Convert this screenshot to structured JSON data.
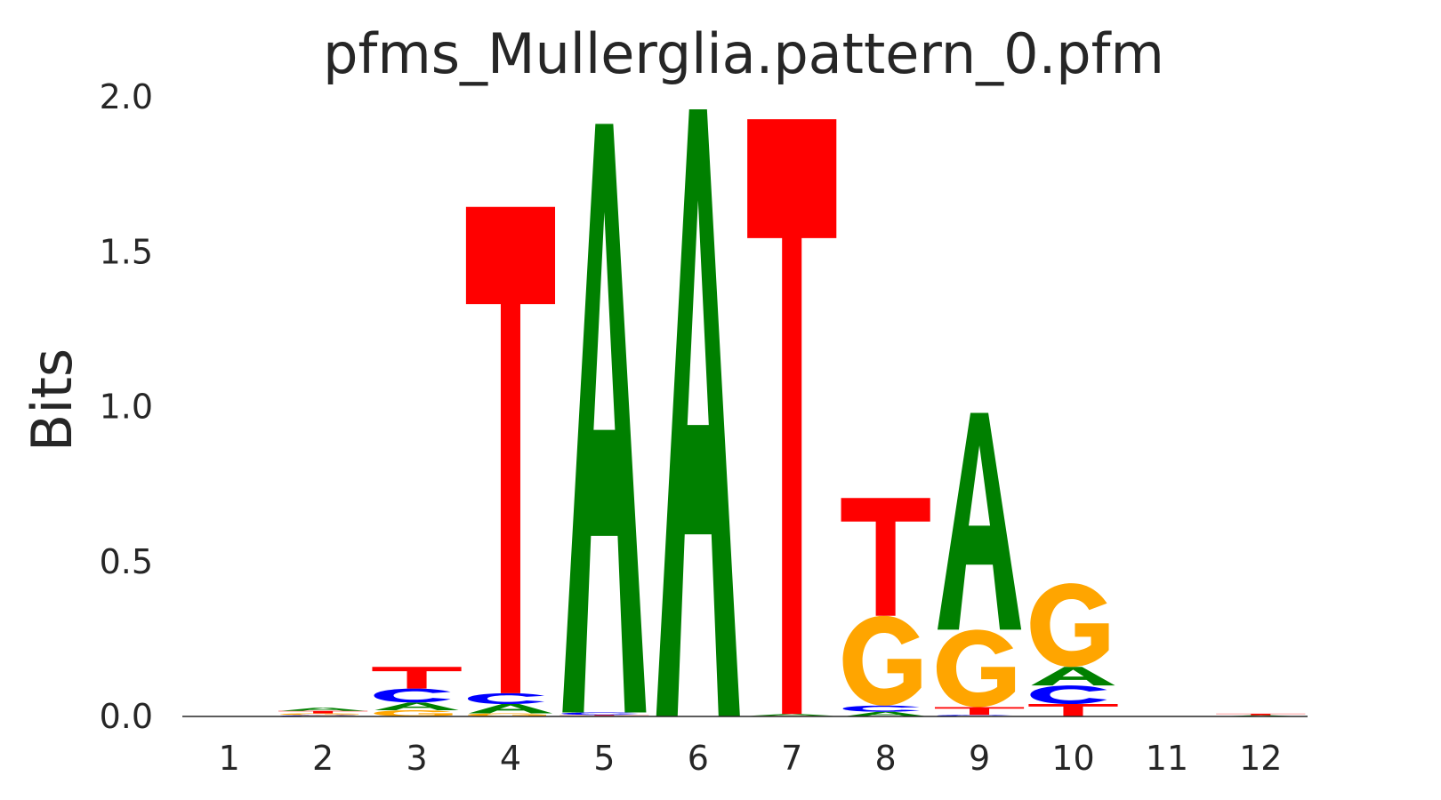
{
  "chart_data": {
    "type": "sequence-logo",
    "title": "pfms_Mullerglia.pattern_0.pfm",
    "xlabel": "",
    "ylabel": "Bits",
    "ylim": [
      0,
      2.0
    ],
    "yticks": [
      "0.0",
      "0.5",
      "1.0",
      "1.5",
      "2.0"
    ],
    "positions": [
      "1",
      "2",
      "3",
      "4",
      "5",
      "6",
      "7",
      "8",
      "9",
      "10",
      "11",
      "12"
    ],
    "colors": {
      "A": "#008000",
      "C": "#0000ff",
      "G": "#ffa500",
      "T": "#ff0000"
    },
    "grid": false,
    "legend": "none",
    "stacks": [
      [],
      [
        {
          "letter": "C",
          "height": 0.004
        },
        {
          "letter": "G",
          "height": 0.006
        },
        {
          "letter": "T",
          "height": 0.008
        },
        {
          "letter": "A",
          "height": 0.01
        }
      ],
      [
        {
          "letter": "G",
          "height": 0.02
        },
        {
          "letter": "A",
          "height": 0.025
        },
        {
          "letter": "C",
          "height": 0.045
        },
        {
          "letter": "T",
          "height": 0.07
        }
      ],
      [
        {
          "letter": "G",
          "height": 0.01
        },
        {
          "letter": "A",
          "height": 0.03
        },
        {
          "letter": "C",
          "height": 0.035
        },
        {
          "letter": "T",
          "height": 1.57
        }
      ],
      [
        {
          "letter": "G",
          "height": 0.002
        },
        {
          "letter": "T",
          "height": 0.003
        },
        {
          "letter": "C",
          "height": 0.008
        },
        {
          "letter": "A",
          "height": 1.9
        }
      ],
      [
        {
          "letter": "A",
          "height": 1.96
        }
      ],
      [
        {
          "letter": "G",
          "height": 0.002
        },
        {
          "letter": "A",
          "height": 0.006
        },
        {
          "letter": "T",
          "height": 1.92
        }
      ],
      [
        {
          "letter": "A",
          "height": 0.015
        },
        {
          "letter": "C",
          "height": 0.02
        },
        {
          "letter": "G",
          "height": 0.29
        },
        {
          "letter": "T",
          "height": 0.38
        }
      ],
      [
        {
          "letter": "C",
          "height": 0.005
        },
        {
          "letter": "T",
          "height": 0.025
        },
        {
          "letter": "G",
          "height": 0.25
        },
        {
          "letter": "A",
          "height": 0.7
        }
      ],
      [
        {
          "letter": "T",
          "height": 0.04
        },
        {
          "letter": "C",
          "height": 0.06
        },
        {
          "letter": "A",
          "height": 0.06
        },
        {
          "letter": "G",
          "height": 0.27
        }
      ],
      [],
      [
        {
          "letter": "A",
          "height": 0.004
        },
        {
          "letter": "T",
          "height": 0.005
        }
      ]
    ]
  }
}
